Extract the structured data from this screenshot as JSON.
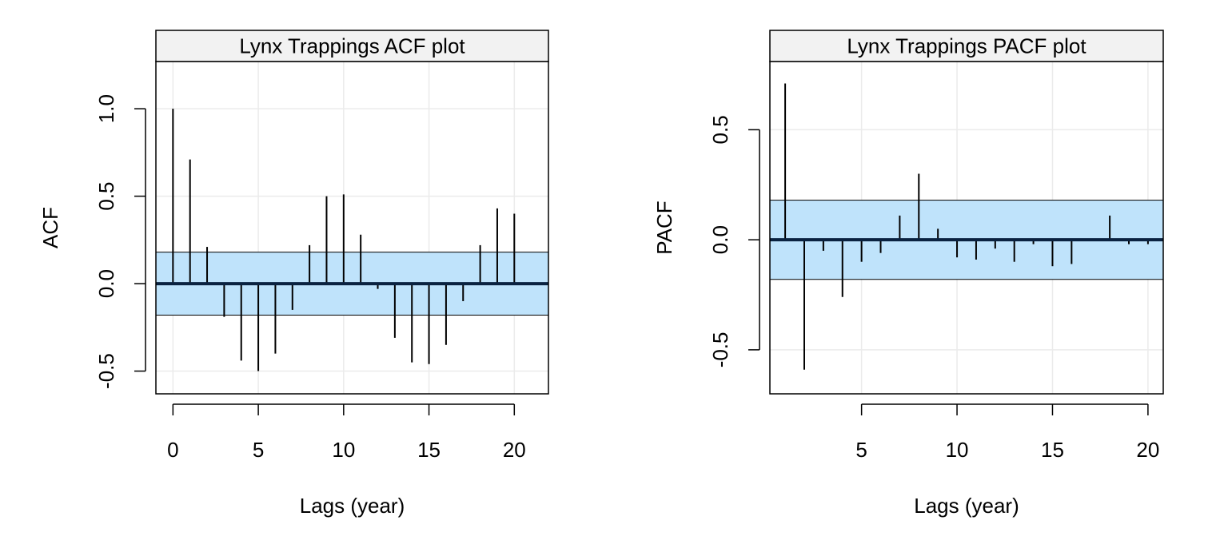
{
  "colors": {
    "band_fill": "#BFE3FB",
    "strip_fill": "#F2F2F2",
    "grid": "#EBEBEB",
    "zero_line": "#0A2240",
    "spike": "#000000"
  },
  "chart_data": [
    {
      "type": "bar",
      "title": "Lynx Trappings ACF plot",
      "xlabel": "Lags (year)",
      "ylabel": "ACF",
      "xlim": [
        -1,
        22
      ],
      "ylim": [
        -0.63,
        1.27
      ],
      "xticks": [
        0,
        5,
        10,
        15,
        20
      ],
      "xtick_labels": [
        "0",
        "5",
        "10",
        "15",
        "20"
      ],
      "yticks": [
        -0.5,
        0,
        0.5,
        1
      ],
      "ytick_labels": [
        "-0.5",
        "0.0",
        "0.5",
        "1.0"
      ],
      "confidence_band": [
        -0.18,
        0.18
      ],
      "grid": true,
      "x": [
        0,
        1,
        2,
        3,
        4,
        5,
        6,
        7,
        8,
        9,
        10,
        11,
        12,
        13,
        14,
        15,
        16,
        17,
        18,
        19,
        20
      ],
      "values": [
        1.0,
        0.71,
        0.21,
        -0.19,
        -0.44,
        -0.5,
        -0.4,
        -0.15,
        0.22,
        0.5,
        0.51,
        0.28,
        -0.03,
        -0.31,
        -0.45,
        -0.46,
        -0.35,
        -0.1,
        0.22,
        0.43,
        0.4
      ]
    },
    {
      "type": "bar",
      "title": "Lynx Trappings PACF plot",
      "xlabel": "Lags (year)",
      "ylabel": "PACF",
      "xlim": [
        0.2,
        20.8
      ],
      "ylim": [
        -0.7,
        0.81
      ],
      "xticks": [
        5,
        10,
        15,
        20
      ],
      "xtick_labels": [
        "5",
        "10",
        "15",
        "20"
      ],
      "yticks": [
        -0.5,
        0,
        0.5
      ],
      "ytick_labels": [
        "-0.5",
        "0.0",
        "0.5"
      ],
      "confidence_band": [
        -0.18,
        0.18
      ],
      "grid": true,
      "x": [
        1,
        2,
        3,
        4,
        5,
        6,
        7,
        8,
        9,
        10,
        11,
        12,
        13,
        14,
        15,
        16,
        17,
        18,
        19,
        20
      ],
      "values": [
        0.71,
        -0.59,
        -0.05,
        -0.26,
        -0.1,
        -0.06,
        0.11,
        0.3,
        0.05,
        -0.08,
        -0.09,
        -0.04,
        -0.1,
        -0.02,
        -0.12,
        -0.11,
        0.0,
        0.11,
        -0.02,
        -0.02
      ]
    }
  ]
}
